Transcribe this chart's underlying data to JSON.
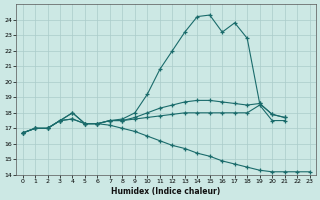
{
  "xlabel": "Humidex (Indice chaleur)",
  "background_color": "#cce8e4",
  "grid_color": "#aaccca",
  "line_color": "#1a6b6b",
  "xlim": [
    -0.5,
    23.5
  ],
  "ylim": [
    14,
    25
  ],
  "yticks": [
    14,
    15,
    16,
    17,
    18,
    19,
    20,
    21,
    22,
    23,
    24
  ],
  "xticks": [
    0,
    1,
    2,
    3,
    4,
    5,
    6,
    7,
    8,
    9,
    10,
    11,
    12,
    13,
    14,
    15,
    16,
    17,
    18,
    19,
    20,
    21,
    22,
    23
  ],
  "series1_x": [
    0,
    1,
    2,
    3,
    4,
    5,
    6,
    7,
    8,
    9,
    10,
    11,
    12,
    13,
    14,
    15,
    16,
    17,
    18,
    19,
    20,
    21
  ],
  "series1_y": [
    16.7,
    17.0,
    17.0,
    17.5,
    17.6,
    17.3,
    17.3,
    17.5,
    17.6,
    18.0,
    19.2,
    20.8,
    22.0,
    23.2,
    24.2,
    24.3,
    23.2,
    23.8,
    22.8,
    18.6,
    17.9,
    17.7
  ],
  "series2_x": [
    0,
    1,
    2,
    3,
    4,
    5,
    6,
    7,
    8,
    9,
    10,
    11,
    12,
    13,
    14,
    15,
    16,
    17,
    18,
    19,
    20,
    21
  ],
  "series2_y": [
    16.7,
    17.0,
    17.0,
    17.5,
    18.0,
    17.3,
    17.3,
    17.5,
    17.5,
    17.7,
    18.0,
    18.3,
    18.5,
    18.7,
    18.8,
    18.8,
    18.7,
    18.6,
    18.5,
    18.6,
    17.9,
    17.7
  ],
  "series3_x": [
    0,
    1,
    2,
    3,
    4,
    5,
    6,
    7,
    8,
    9,
    10,
    11,
    12,
    13,
    14,
    15,
    16,
    17,
    18,
    19,
    20,
    21,
    22,
    23
  ],
  "series3_y": [
    16.7,
    17.0,
    17.0,
    17.5,
    17.6,
    17.3,
    17.3,
    17.2,
    17.0,
    16.8,
    16.5,
    16.2,
    15.9,
    15.7,
    15.4,
    15.2,
    14.9,
    14.7,
    14.5,
    14.3,
    14.2,
    14.2,
    14.2,
    14.2
  ],
  "series4_x": [
    0,
    1,
    2,
    3,
    4,
    5,
    6,
    7,
    8,
    9,
    10,
    11,
    12,
    13,
    14,
    15,
    16,
    17,
    18,
    19,
    20,
    21
  ],
  "series4_y": [
    16.7,
    17.0,
    17.0,
    17.5,
    18.0,
    17.3,
    17.3,
    17.5,
    17.5,
    17.6,
    17.7,
    17.8,
    17.9,
    18.0,
    18.0,
    18.0,
    18.0,
    18.0,
    18.0,
    18.5,
    17.5,
    17.5
  ]
}
